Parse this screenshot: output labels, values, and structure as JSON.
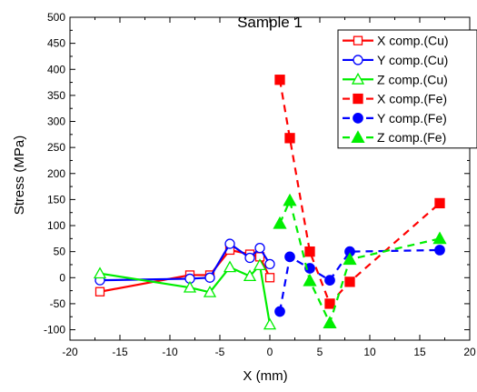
{
  "chart_data": {
    "type": "line",
    "title": "Sample 1",
    "xlabel": "X (mm)",
    "ylabel": "Stress (MPa)",
    "xlim": [
      -20,
      20
    ],
    "ylim": [
      -120,
      500
    ],
    "x_ticks": [
      -20,
      -15,
      -10,
      -5,
      0,
      5,
      10,
      15,
      20
    ],
    "y_ticks": [
      -100,
      -50,
      0,
      50,
      100,
      150,
      200,
      250,
      300,
      350,
      400,
      450,
      500
    ],
    "grid": false,
    "legend_position": "top-right",
    "series": [
      {
        "name": "X comp.(Cu)",
        "color": "#ff0000",
        "marker": "open-square",
        "dash": "solid",
        "x": [
          -17,
          -8,
          -6,
          -4,
          -2,
          -1,
          0
        ],
        "y": [
          -27,
          5,
          5,
          53,
          45,
          40,
          0
        ]
      },
      {
        "name": "Y comp.(Cu)",
        "color": "#0000ff",
        "marker": "open-circle",
        "dash": "solid",
        "x": [
          -17,
          -8,
          -6,
          -4,
          -2,
          -1,
          0
        ],
        "y": [
          -5,
          -2,
          0,
          65,
          38,
          57,
          26
        ]
      },
      {
        "name": "Z comp.(Cu)",
        "color": "#00ee00",
        "marker": "open-triangle",
        "dash": "solid",
        "x": [
          -17,
          -8,
          -6,
          -4,
          -2,
          -1,
          0
        ],
        "y": [
          8,
          -19,
          -28,
          20,
          3,
          24,
          -90
        ]
      },
      {
        "name": "X comp.(Fe)",
        "color": "#ff0000",
        "marker": "filled-square",
        "dash": "dashed",
        "x": [
          1,
          2,
          4,
          6,
          8,
          17
        ],
        "y": [
          380,
          268,
          50,
          -50,
          -8,
          143
        ]
      },
      {
        "name": "Y comp.(Fe)",
        "color": "#0000ff",
        "marker": "filled-circle",
        "dash": "dashed",
        "x": [
          1,
          2,
          4,
          6,
          8,
          17
        ],
        "y": [
          -65,
          40,
          18,
          -5,
          50,
          53
        ]
      },
      {
        "name": "Z comp.(Fe)",
        "color": "#00ee00",
        "marker": "filled-triangle",
        "dash": "dashed",
        "x": [
          1,
          2,
          4,
          6,
          8,
          17
        ],
        "y": [
          104,
          148,
          -6,
          -87,
          35,
          75
        ]
      }
    ]
  }
}
